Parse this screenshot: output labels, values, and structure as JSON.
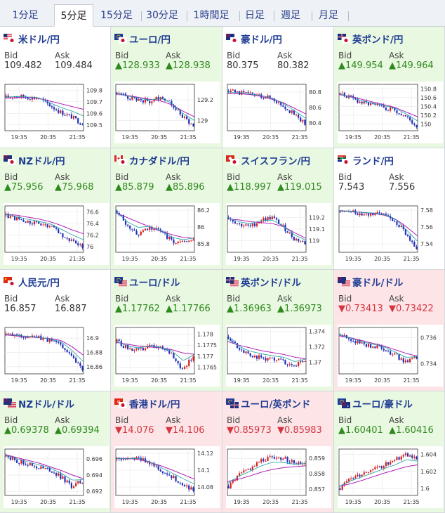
{
  "tabs": [
    "1分足",
    "5分足",
    "15分足",
    "30分足",
    "1時間足",
    "日足",
    "週足",
    "月足"
  ],
  "active_tab": 1,
  "labels": {
    "bid": "Bid",
    "ask": "Ask"
  },
  "colors": {
    "up_bg": "#e9f8e1",
    "down_bg": "#fde5e7",
    "up_text": "#2f8a1e",
    "down_text": "#d63540",
    "bull": "#d41f1f",
    "bear": "#1f2fb8",
    "ma": "#b01eb8",
    "ma2": "#1aa0a0"
  },
  "pairs": [
    {
      "name": "米ドル/円",
      "flags": [
        "us",
        "jp"
      ],
      "state": "neutral",
      "bid": "109.482",
      "ask": "109.484",
      "chart_data": {
        "type": "candlestick",
        "x_ticks": [
          "19:35",
          "20:35",
          "21:35"
        ],
        "y_ticks": [
          "109.8",
          "109.7",
          "109.6",
          "109.5"
        ],
        "ylim": [
          109.45,
          109.85
        ],
        "trend": [
          0.72,
          0.75,
          0.72,
          0.7,
          0.55,
          0.4,
          0.3,
          0.15
        ],
        "ma": [
          0.7,
          0.71,
          0.72,
          0.7,
          0.64,
          0.58,
          0.52,
          0.46
        ]
      }
    },
    {
      "name": "ユーロ/円",
      "flags": [
        "eu",
        "jp"
      ],
      "state": "up",
      "bid": "▲128.933",
      "ask": "▲128.938",
      "chart_data": {
        "type": "candlestick",
        "x_ticks": [
          "19:35",
          "20:35",
          "21:35"
        ],
        "y_ticks": [
          "129.2",
          "129"
        ],
        "ylim": [
          128.9,
          129.35
        ],
        "trend": [
          0.82,
          0.72,
          0.68,
          0.62,
          0.74,
          0.6,
          0.3,
          0.12
        ],
        "ma": [
          0.8,
          0.76,
          0.72,
          0.68,
          0.64,
          0.56,
          0.42,
          0.3
        ]
      }
    },
    {
      "name": "豪ドル/円",
      "flags": [
        "au",
        "jp"
      ],
      "state": "neutral",
      "bid": "80.375",
      "ask": "80.382",
      "chart_data": {
        "type": "candlestick",
        "x_ticks": [
          "19:35",
          "20:35",
          "21:35"
        ],
        "y_ticks": [
          "80.8",
          "80.6",
          "80.4"
        ],
        "ylim": [
          80.3,
          80.9
        ],
        "trend": [
          0.85,
          0.82,
          0.78,
          0.76,
          0.7,
          0.55,
          0.35,
          0.15
        ],
        "ma": [
          0.8,
          0.8,
          0.78,
          0.74,
          0.68,
          0.6,
          0.48,
          0.36
        ]
      }
    },
    {
      "name": "英ポンド/円",
      "flags": [
        "gb",
        "jp"
      ],
      "state": "up",
      "bid": "▲149.954",
      "ask": "▲149.964",
      "chart_data": {
        "type": "candlestick",
        "x_ticks": [
          "19:35",
          "20:35",
          "21:35"
        ],
        "y_ticks": [
          "150.8",
          "150.6",
          "150.4",
          "150.2",
          "150"
        ],
        "ylim": [
          149.85,
          150.9
        ],
        "trend": [
          0.8,
          0.7,
          0.6,
          0.55,
          0.5,
          0.45,
          0.3,
          0.1
        ],
        "ma": [
          0.78,
          0.74,
          0.68,
          0.62,
          0.56,
          0.5,
          0.4,
          0.3
        ]
      }
    },
    {
      "name": "NZドル/円",
      "flags": [
        "nz",
        "jp"
      ],
      "state": "up",
      "bid": "▲75.956",
      "ask": "▲75.968",
      "chart_data": {
        "type": "candlestick",
        "x_ticks": [
          "19:35",
          "20:35",
          "21:35"
        ],
        "y_ticks": [
          "76.6",
          "76.4",
          "76.2",
          "76"
        ],
        "ylim": [
          75.9,
          76.7
        ],
        "trend": [
          0.8,
          0.72,
          0.65,
          0.6,
          0.55,
          0.4,
          0.25,
          0.12
        ],
        "ma": [
          0.82,
          0.8,
          0.76,
          0.72,
          0.66,
          0.58,
          0.48,
          0.4
        ]
      }
    },
    {
      "name": "カナダドル/円",
      "flags": [
        "ca",
        "jp"
      ],
      "state": "up",
      "bid": "▲85.879",
      "ask": "▲85.896",
      "chart_data": {
        "type": "candlestick",
        "x_ticks": [
          "19:35",
          "20:35",
          "21:35"
        ],
        "y_ticks": [
          "86.2",
          "86",
          "85.8"
        ],
        "ylim": [
          85.7,
          86.25
        ],
        "trend": [
          0.9,
          0.55,
          0.4,
          0.55,
          0.45,
          0.25,
          0.2,
          0.3
        ],
        "ma": [
          0.85,
          0.75,
          0.65,
          0.55,
          0.45,
          0.38,
          0.32,
          0.3
        ]
      }
    },
    {
      "name": "スイスフラン/円",
      "flags": [
        "ch",
        "jp"
      ],
      "state": "up",
      "bid": "▲118.997",
      "ask": "▲119.015",
      "chart_data": {
        "type": "candlestick",
        "x_ticks": [
          "19:35",
          "20:35",
          "21:35"
        ],
        "y_ticks": [
          "119.2",
          "119.1",
          "119"
        ],
        "ylim": [
          118.9,
          119.3
        ],
        "trend": [
          0.75,
          0.6,
          0.55,
          0.7,
          0.75,
          0.55,
          0.3,
          0.2
        ],
        "ma": [
          0.72,
          0.7,
          0.66,
          0.64,
          0.62,
          0.55,
          0.42,
          0.3
        ]
      }
    },
    {
      "name": "ランド/円",
      "flags": [
        "za",
        "jp"
      ],
      "state": "neutral",
      "bid": "7.543",
      "ask": "7.556",
      "chart_data": {
        "type": "candlestick",
        "x_ticks": [
          "19:35",
          "20:35",
          "21:35"
        ],
        "y_ticks": [
          "7.58",
          "7.56",
          "7.54"
        ],
        "ylim": [
          7.53,
          7.585
        ],
        "trend": [
          0.88,
          0.86,
          0.84,
          0.84,
          0.8,
          0.7,
          0.4,
          0.1
        ],
        "ma": [
          0.9,
          0.88,
          0.86,
          0.84,
          0.8,
          0.72,
          0.55,
          0.35
        ]
      }
    },
    {
      "name": "人民元/円",
      "flags": [
        "cn",
        "jp"
      ],
      "state": "neutral",
      "bid": "16.857",
      "ask": "16.887",
      "chart_data": {
        "type": "candlestick",
        "x_ticks": [
          "19:35",
          "20:35",
          "21:35"
        ],
        "y_ticks": [
          "16.9",
          "16.88",
          "16.86"
        ],
        "ylim": [
          16.85,
          16.915
        ],
        "trend": [
          0.85,
          0.82,
          0.8,
          0.78,
          0.72,
          0.65,
          0.4,
          0.1
        ],
        "ma": [
          0.84,
          0.82,
          0.8,
          0.78,
          0.76,
          0.72,
          0.58,
          0.4
        ]
      }
    },
    {
      "name": "ユーロ/ドル",
      "flags": [
        "eu",
        "us"
      ],
      "state": "up",
      "bid": "▲1.17762",
      "ask": "▲1.17766",
      "chart_data": {
        "type": "candlestick",
        "x_ticks": [
          "19:35",
          "20:35",
          "21:35"
        ],
        "y_ticks": [
          "1.178",
          "1.1775",
          "1.177",
          "1.1765"
        ],
        "ylim": [
          1.1762,
          1.1783
        ],
        "trend": [
          0.7,
          0.55,
          0.5,
          0.6,
          0.55,
          0.45,
          0.1,
          0.4
        ],
        "ma": [
          0.68,
          0.64,
          0.6,
          0.58,
          0.56,
          0.52,
          0.45,
          0.42
        ]
      }
    },
    {
      "name": "英ポンド/ドル",
      "flags": [
        "gb",
        "us"
      ],
      "state": "up",
      "bid": "▲1.36963",
      "ask": "▲1.36973",
      "chart_data": {
        "type": "candlestick",
        "x_ticks": [
          "19:35",
          "20:35",
          "21:35"
        ],
        "y_ticks": [
          "1.374",
          "1.372",
          "1.37"
        ],
        "ylim": [
          1.3685,
          1.3745
        ],
        "trend": [
          0.8,
          0.55,
          0.4,
          0.35,
          0.3,
          0.28,
          0.15,
          0.3
        ],
        "ma": [
          0.7,
          0.62,
          0.56,
          0.5,
          0.46,
          0.42,
          0.36,
          0.32
        ]
      }
    },
    {
      "name": "豪ドル/ドル",
      "flags": [
        "au",
        "us"
      ],
      "state": "down",
      "bid": "▼0.73413",
      "ask": "▼0.73422",
      "chart_data": {
        "type": "candlestick",
        "x_ticks": [
          "19:35",
          "20:35",
          "21:35"
        ],
        "y_ticks": [
          "0.736",
          "0.734"
        ],
        "ylim": [
          0.7332,
          0.7368
        ],
        "trend": [
          0.85,
          0.75,
          0.65,
          0.6,
          0.55,
          0.4,
          0.25,
          0.35
        ],
        "ma": [
          0.82,
          0.78,
          0.72,
          0.66,
          0.6,
          0.52,
          0.44,
          0.38
        ]
      }
    },
    {
      "name": "NZドル/ドル",
      "flags": [
        "nz",
        "us"
      ],
      "state": "up",
      "bid": "▲0.69378",
      "ask": "▲0.69394",
      "chart_data": {
        "type": "candlestick",
        "x_ticks": [
          "19:35",
          "20:35",
          "21:35"
        ],
        "y_ticks": [
          "0.696",
          "0.694",
          "0.692"
        ],
        "ylim": [
          0.6915,
          0.6972
        ],
        "trend": [
          0.85,
          0.75,
          0.68,
          0.6,
          0.55,
          0.4,
          0.2,
          0.3
        ],
        "ma": [
          0.88,
          0.82,
          0.76,
          0.7,
          0.62,
          0.54,
          0.44,
          0.36
        ]
      }
    },
    {
      "name": "香港ドル/円",
      "flags": [
        "hk",
        "jp"
      ],
      "state": "down",
      "bid": "▼14.076",
      "ask": "▼14.106",
      "chart_data": {
        "type": "candlestick",
        "x_ticks": [
          "19:35",
          "20:35",
          "21:35"
        ],
        "y_ticks": [
          "14.12",
          "14.1",
          "14.08"
        ],
        "ylim": [
          14.07,
          14.125
        ],
        "trend": [
          0.78,
          0.76,
          0.8,
          0.72,
          0.55,
          0.4,
          0.25,
          0.12
        ],
        "ma": [
          0.8,
          0.8,
          0.78,
          0.72,
          0.64,
          0.55,
          0.45,
          0.35
        ]
      }
    },
    {
      "name": "ユーロ/英ポンド",
      "flags": [
        "eu",
        "gb"
      ],
      "state": "down",
      "bid": "▼0.85973",
      "ask": "▼0.85983",
      "chart_data": {
        "type": "candlestick",
        "x_ticks": [
          "19:35",
          "20:35",
          "21:35"
        ],
        "y_ticks": [
          "0.859",
          "0.858",
          "0.857"
        ],
        "ylim": [
          0.8566,
          0.8596
        ],
        "trend": [
          0.2,
          0.45,
          0.6,
          0.75,
          0.85,
          0.8,
          0.7,
          0.72
        ],
        "ma": [
          0.3,
          0.35,
          0.42,
          0.5,
          0.56,
          0.6,
          0.62,
          0.64
        ]
      }
    },
    {
      "name": "ユーロ/豪ドル",
      "flags": [
        "eu",
        "au"
      ],
      "state": "up",
      "bid": "▲1.60401",
      "ask": "▲1.60416",
      "chart_data": {
        "type": "candlestick",
        "x_ticks": [
          "19:35",
          "20:35",
          "21:35"
        ],
        "y_ticks": [
          "1.604",
          "1.602",
          "1.6"
        ],
        "ylim": [
          1.5992,
          1.6046
        ],
        "trend": [
          0.15,
          0.35,
          0.45,
          0.55,
          0.65,
          0.75,
          0.9,
          0.8
        ],
        "ma": [
          0.2,
          0.25,
          0.32,
          0.4,
          0.48,
          0.55,
          0.62,
          0.66
        ]
      }
    }
  ]
}
